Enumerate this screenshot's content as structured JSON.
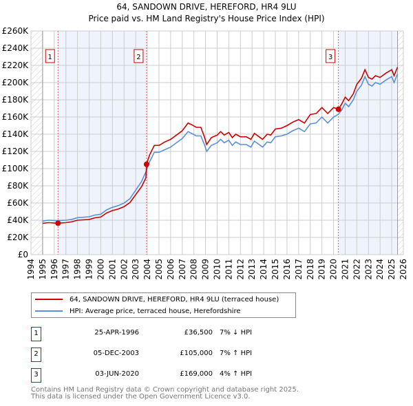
{
  "title": "64, SANDOWN DRIVE, HEREFORD, HR4 9LU",
  "subtitle": "Price paid vs. HM Land Registry's House Price Index (HPI)",
  "chart_data": {
    "type": "line",
    "ylim": [
      0,
      260000
    ],
    "xlim": [
      1994,
      2026
    ],
    "yticks": [
      "£0",
      "£20K",
      "£40K",
      "£60K",
      "£80K",
      "£100K",
      "£120K",
      "£140K",
      "£160K",
      "£180K",
      "£200K",
      "£220K",
      "£240K",
      "£260K"
    ],
    "xticks": [
      "1994",
      "1995",
      "1996",
      "1997",
      "1998",
      "1999",
      "2000",
      "2001",
      "2002",
      "2003",
      "2004",
      "2005",
      "2006",
      "2007",
      "2008",
      "2009",
      "2010",
      "2011",
      "2012",
      "2013",
      "2014",
      "2015",
      "2016",
      "2017",
      "2018",
      "2019",
      "2020",
      "2021",
      "2022",
      "2023",
      "2024",
      "2025",
      "2026"
    ],
    "grid": true,
    "colors": {
      "property": "#cc0000",
      "hpi": "#5b8fd4",
      "shade": "#eef3fc"
    },
    "series": [
      {
        "name": "64, SANDOWN DRIVE, HEREFORD, HR4 9LU (terraced house)",
        "key": "property",
        "x": [
          1995,
          1995.5,
          1996.3,
          1997,
          1997.5,
          1998,
          1999,
          1999.5,
          2000,
          2000.5,
          2001,
          2001.5,
          2002,
          2002.5,
          2003,
          2003.5,
          2003.88,
          2003.93,
          2004.2,
          2004.6,
          2005,
          2005.5,
          2006,
          2006.5,
          2007,
          2007.5,
          2007.8,
          2008.2,
          2008.6,
          2008.9,
          2009.1,
          2009.5,
          2010,
          2010.3,
          2010.6,
          2011,
          2011.3,
          2011.6,
          2012,
          2012.5,
          2012.9,
          2013.2,
          2013.6,
          2013.9,
          2014.3,
          2014.6,
          2015,
          2015.5,
          2016,
          2016.5,
          2017,
          2017.5,
          2018,
          2018.5,
          2019,
          2019.5,
          2020,
          2020.42,
          2020.7,
          2021,
          2021.3,
          2021.7,
          2022,
          2022.4,
          2022.7,
          2023,
          2023.3,
          2023.6,
          2024,
          2024.5,
          2025,
          2025.2,
          2025.5
        ],
        "y": [
          36.3,
          37.2,
          36.5,
          37.2,
          38.1,
          40,
          40.9,
          42.8,
          43.7,
          48.4,
          51.2,
          53,
          55.8,
          60.5,
          69.8,
          79,
          89.3,
          105,
          116,
          127,
          127,
          131,
          134,
          139,
          144,
          153,
          151,
          148,
          148,
          137,
          128,
          136,
          139,
          143,
          139,
          142,
          136,
          140,
          137,
          137,
          134,
          141,
          137,
          134,
          140,
          139,
          146,
          147,
          150,
          154,
          157,
          153,
          163,
          164,
          171,
          164,
          171,
          169,
          175,
          183,
          179,
          187,
          198,
          205,
          215,
          206,
          204,
          208,
          206,
          211,
          215,
          208,
          218
        ]
      },
      {
        "name": "HPI: Average price, terraced house, Herefordshire",
        "key": "hpi",
        "x": [
          1995,
          1995.5,
          1996.3,
          1997,
          1997.5,
          1998,
          1999,
          1999.5,
          2000,
          2000.5,
          2001,
          2001.5,
          2002,
          2002.5,
          2003,
          2003.5,
          2003.9,
          2004.2,
          2004.6,
          2005,
          2005.5,
          2006,
          2006.5,
          2007,
          2007.5,
          2007.8,
          2008.2,
          2008.6,
          2008.9,
          2009.1,
          2009.5,
          2010,
          2010.3,
          2010.6,
          2011,
          2011.3,
          2011.6,
          2012,
          2012.5,
          2012.9,
          2013.2,
          2013.6,
          2013.9,
          2014.3,
          2014.6,
          2015,
          2015.5,
          2016,
          2016.5,
          2017,
          2017.5,
          2018,
          2018.5,
          2019,
          2019.5,
          2020,
          2020.4,
          2020.7,
          2021,
          2021.3,
          2021.7,
          2022,
          2022.4,
          2022.7,
          2023,
          2023.3,
          2023.6,
          2024,
          2024.5,
          2025,
          2025.2,
          2025.5
        ],
        "y": [
          39,
          40,
          39.5,
          40,
          41,
          43,
          44,
          46,
          47,
          52,
          55,
          57,
          60,
          65,
          75,
          85,
          97,
          108,
          119,
          119,
          122,
          125,
          130,
          135,
          143,
          141,
          138,
          138,
          128,
          120,
          127,
          130,
          134,
          130,
          133,
          127,
          131,
          128,
          128,
          125,
          132,
          128,
          125,
          131,
          130,
          137,
          138,
          140,
          144,
          147,
          143,
          152,
          153,
          160,
          153,
          160,
          163,
          168,
          176,
          172,
          180,
          190,
          197,
          207,
          198,
          196,
          200,
          198,
          203,
          207,
          200,
          210
        ]
      }
    ],
    "shaded_ranges": [
      [
        1996.32,
        2003.93
      ],
      [
        2020.42,
        2025.5
      ]
    ],
    "data_end": 2025.5,
    "sales": [
      {
        "label": "1",
        "x": 1996.32,
        "y": 36.5
      },
      {
        "label": "2",
        "x": 2003.93,
        "y": 105
      },
      {
        "label": "3",
        "x": 2020.42,
        "y": 169
      }
    ]
  },
  "legend": {
    "property": "64, SANDOWN DRIVE, HEREFORD, HR4 9LU (terraced house)",
    "hpi": "HPI: Average price, terraced house, Herefordshire"
  },
  "transactions": [
    {
      "num": "1",
      "date": "25-APR-1996",
      "price": "£36,500",
      "hpi": "7% ↓ HPI"
    },
    {
      "num": "2",
      "date": "05-DEC-2003",
      "price": "£105,000",
      "hpi": "7% ↑ HPI"
    },
    {
      "num": "3",
      "date": "03-JUN-2020",
      "price": "£169,000",
      "hpi": "4% ↑ HPI"
    }
  ],
  "footer": [
    "Contains HM Land Registry data © Crown copyright and database right 2025.",
    "This data is licensed under the Open Government Licence v3.0."
  ]
}
